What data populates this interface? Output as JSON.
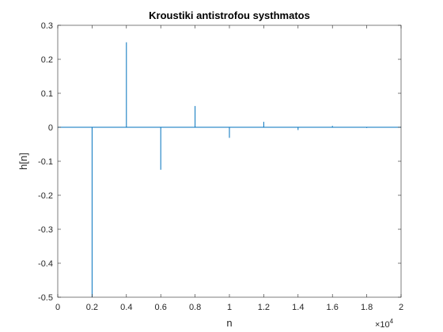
{
  "chart_data": {
    "type": "line",
    "title": "Kroustiki antistrofou systhmatos",
    "xlabel": "n",
    "ylabel": "h[n]",
    "xlim": [
      0,
      20000
    ],
    "ylim": [
      -0.5,
      0.3
    ],
    "x_tick_values": [
      0,
      2000,
      4000,
      6000,
      8000,
      10000,
      12000,
      14000,
      16000,
      18000,
      20000
    ],
    "x_tick_labels": [
      "0",
      "0.2",
      "0.4",
      "0.6",
      "0.8",
      "1",
      "1.2",
      "1.4",
      "1.6",
      "1.8",
      "2"
    ],
    "x_exponent_base": "×10",
    "x_exponent_power": "4",
    "y_tick_values": [
      -0.5,
      -0.4,
      -0.3,
      -0.2,
      -0.1,
      0,
      0.1,
      0.2,
      0.3
    ],
    "y_tick_labels": [
      "-0.5",
      "-0.4",
      "-0.3",
      "-0.2",
      "-0.1",
      "0",
      "0.1",
      "0.2",
      "0.3"
    ],
    "grid": false,
    "series": [
      {
        "color": "#0072bd",
        "x": [
          0,
          2000,
          2000,
          2000,
          4000,
          4000,
          4000,
          6000,
          6000,
          6000,
          8000,
          8000,
          8000,
          10000,
          10000,
          10000,
          12000,
          12000,
          12000,
          14000,
          14000,
          14000,
          16000,
          16000,
          16000,
          18000,
          18000,
          18000,
          20000
        ],
        "y": [
          0,
          0,
          -0.5,
          0,
          0,
          0.25,
          0,
          0,
          -0.125,
          0,
          0,
          0.0625,
          0,
          0,
          -0.031,
          0,
          0,
          0.016,
          0,
          0,
          -0.008,
          0,
          0,
          0.004,
          0,
          0,
          -0.002,
          0,
          0
        ]
      }
    ]
  }
}
